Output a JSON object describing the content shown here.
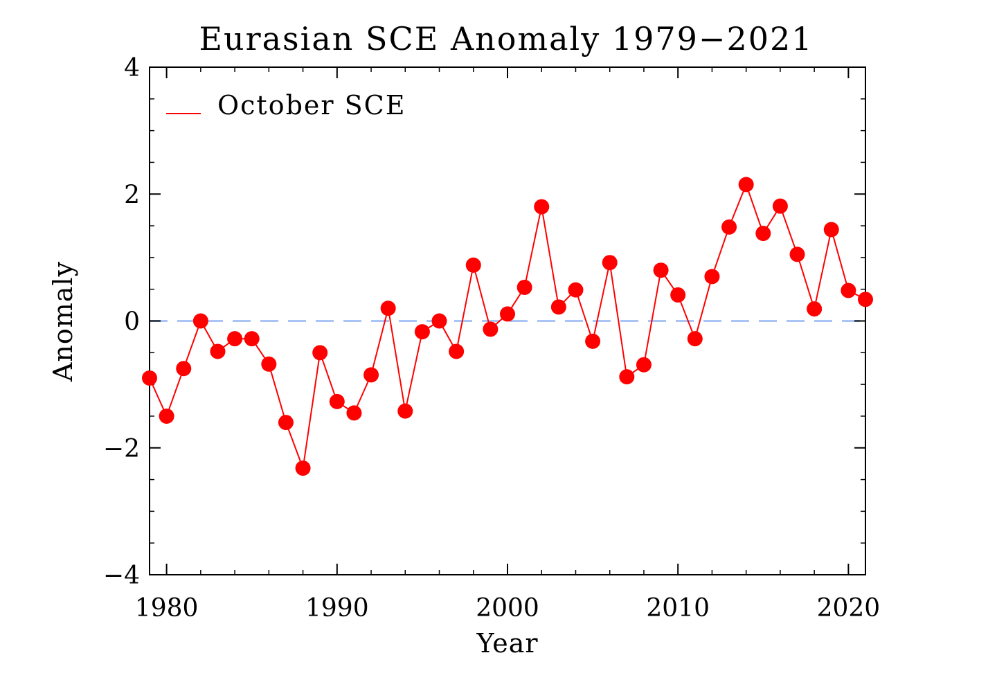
{
  "chart_data": {
    "type": "line",
    "title": "Eurasian SCE Anomaly 1979−2021",
    "xlabel": "Year",
    "ylabel": "Anomaly",
    "xlim": [
      1979,
      2021
    ],
    "ylim": [
      -4,
      4
    ],
    "x_ticks": [
      1980,
      1990,
      2000,
      2010,
      2020
    ],
    "y_ticks": [
      -4,
      -2,
      0,
      2,
      4
    ],
    "x_tick_labels": [
      "1980",
      "1990",
      "2000",
      "2010",
      "2020"
    ],
    "y_tick_labels": [
      "−4",
      "−2",
      "0",
      "2",
      "4"
    ],
    "legend": {
      "position": "top-left",
      "label": "October SCE"
    },
    "reference_line": {
      "y": 0,
      "style": "dashed",
      "color": "#a9c4f5"
    },
    "series": [
      {
        "name": "October SCE",
        "color": "#ff0000",
        "marker": "circle",
        "x": [
          1979,
          1980,
          1981,
          1982,
          1983,
          1984,
          1985,
          1986,
          1987,
          1988,
          1989,
          1990,
          1991,
          1992,
          1993,
          1994,
          1995,
          1996,
          1997,
          1998,
          1999,
          2000,
          2001,
          2002,
          2003,
          2004,
          2005,
          2006,
          2007,
          2008,
          2009,
          2010,
          2011,
          2012,
          2013,
          2014,
          2015,
          2016,
          2017,
          2018,
          2019,
          2020,
          2021
        ],
        "values": [
          -0.9,
          -1.5,
          -0.75,
          0.0,
          -0.48,
          -0.28,
          -0.28,
          -0.68,
          -1.6,
          -2.32,
          -0.5,
          -1.27,
          -1.45,
          -0.85,
          0.2,
          -1.42,
          -0.17,
          0.0,
          -0.48,
          0.88,
          -0.13,
          0.11,
          0.53,
          1.8,
          0.22,
          0.49,
          -0.32,
          0.92,
          -0.88,
          -0.69,
          0.8,
          0.41,
          -0.28,
          0.7,
          1.48,
          2.15,
          1.38,
          1.81,
          1.05,
          0.19,
          1.44,
          0.48,
          0.34
        ]
      }
    ]
  }
}
